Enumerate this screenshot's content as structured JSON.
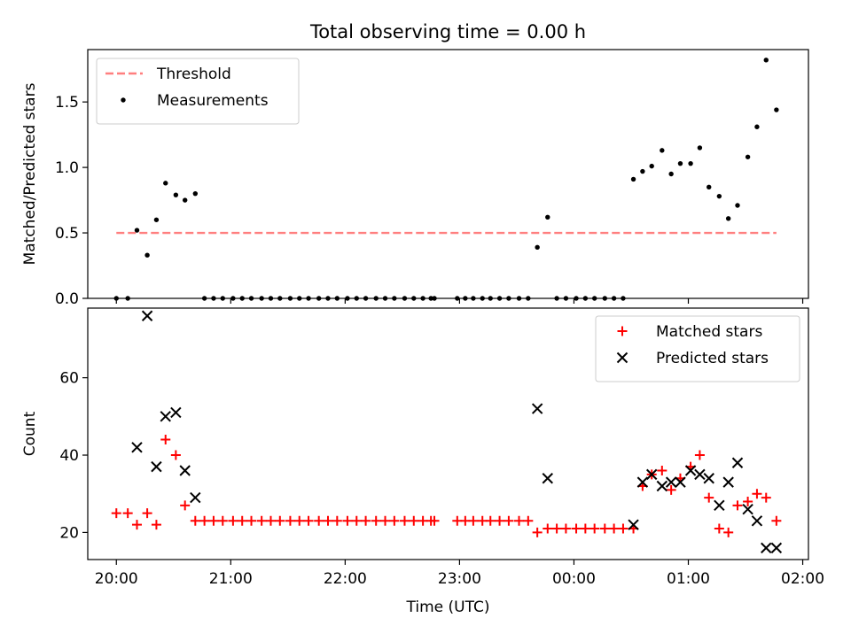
{
  "chart_data": [
    {
      "type": "scatter",
      "title": "Total observing time = 0.00 h",
      "xlabel": "",
      "ylabel": "Matched/Predicted stars",
      "ylim": [
        0,
        1.9
      ],
      "yticks": [
        0.0,
        0.5,
        1.0,
        1.5
      ],
      "ytick_labels": [
        "0.0",
        "0.5",
        "1.0",
        "1.5"
      ],
      "xlim_hours": [
        19.75,
        26.05
      ],
      "xticks_hours": [
        20,
        21,
        22,
        23,
        24,
        25,
        26
      ],
      "show_xtick_labels": false,
      "grid": false,
      "legend_position": "top-left",
      "legend": [
        {
          "label": "Threshold",
          "kind": "dashed-line",
          "color": "#ff7f7f"
        },
        {
          "label": "Measurements",
          "kind": "dot",
          "color": "#000000"
        }
      ],
      "threshold": {
        "value": 0.5,
        "x_start": 20.0,
        "x_end": 25.77,
        "color": "#ff7f7f"
      },
      "series": [
        {
          "kind": "measurements",
          "color": "#000000",
          "x": [
            20.0,
            20.1,
            20.18,
            20.27,
            20.35,
            20.43,
            20.52,
            20.6,
            20.69,
            20.77,
            20.85,
            20.93,
            21.02,
            21.1,
            21.18,
            21.27,
            21.35,
            21.43,
            21.52,
            21.6,
            21.68,
            21.77,
            21.85,
            21.93,
            22.02,
            22.1,
            22.18,
            22.27,
            22.35,
            22.43,
            22.52,
            22.6,
            22.68,
            22.75,
            22.78,
            22.98,
            23.05,
            23.12,
            23.2,
            23.27,
            23.35,
            23.43,
            23.52,
            23.6,
            23.68,
            23.77,
            23.85,
            23.93,
            24.02,
            24.1,
            24.18,
            24.27,
            24.35,
            24.43,
            24.52,
            24.6,
            24.68,
            24.77,
            24.85,
            24.93,
            25.02,
            25.1,
            25.18,
            25.27,
            25.35,
            25.43,
            25.52,
            25.6,
            25.68,
            25.77
          ],
          "y": [
            0,
            0,
            0.52,
            0.33,
            0.6,
            0.88,
            0.79,
            0.75,
            0.8,
            0,
            0,
            0,
            0,
            0,
            0,
            0,
            0,
            0,
            0,
            0,
            0,
            0,
            0,
            0,
            0,
            0,
            0,
            0,
            0,
            0,
            0,
            0,
            0,
            0,
            0,
            0,
            0,
            0,
            0,
            0,
            0,
            0,
            0,
            0,
            0.39,
            0.62,
            0,
            0,
            0,
            0,
            0,
            0,
            0,
            0,
            0.91,
            0.97,
            1.01,
            1.13,
            0.95,
            1.03,
            1.03,
            1.15,
            0.85,
            0.78,
            0.61,
            0.71,
            1.08,
            1.31,
            1.82,
            1.44
          ]
        }
      ]
    },
    {
      "type": "scatter",
      "title": "",
      "xlabel": "Time (UTC)",
      "ylabel": "Count",
      "ylim": [
        13,
        78
      ],
      "yticks": [
        20,
        40,
        60
      ],
      "ytick_labels": [
        "20",
        "40",
        "60"
      ],
      "xlim_hours": [
        19.75,
        26.05
      ],
      "xticks_hours": [
        20,
        21,
        22,
        23,
        24,
        25,
        26
      ],
      "xtick_labels": [
        "20:00",
        "21:00",
        "22:00",
        "23:00",
        "00:00",
        "01:00",
        "02:00"
      ],
      "grid": false,
      "legend_position": "top-right",
      "legend": [
        {
          "label": "Matched stars",
          "kind": "plus",
          "color": "#ff0000"
        },
        {
          "label": "Predicted stars",
          "kind": "cross",
          "color": "#000000"
        }
      ],
      "series": [
        {
          "name": "Matched stars",
          "marker": "plus",
          "color": "#ff0000",
          "x": [
            20.0,
            20.1,
            20.18,
            20.27,
            20.35,
            20.43,
            20.52,
            20.6,
            20.69,
            20.77,
            20.85,
            20.93,
            21.02,
            21.1,
            21.18,
            21.27,
            21.35,
            21.43,
            21.52,
            21.6,
            21.68,
            21.77,
            21.85,
            21.93,
            22.02,
            22.1,
            22.18,
            22.27,
            22.35,
            22.43,
            22.52,
            22.6,
            22.68,
            22.75,
            22.78,
            22.98,
            23.05,
            23.12,
            23.2,
            23.27,
            23.35,
            23.43,
            23.52,
            23.6,
            23.68,
            23.77,
            23.85,
            23.93,
            24.02,
            24.1,
            24.18,
            24.27,
            24.35,
            24.43,
            24.52,
            24.6,
            24.68,
            24.77,
            24.85,
            24.93,
            25.02,
            25.1,
            25.18,
            25.27,
            25.35,
            25.43,
            25.52,
            25.6,
            25.68,
            25.77
          ],
          "y": [
            25,
            25,
            22,
            25,
            22,
            44,
            40,
            27,
            23,
            23,
            23,
            23,
            23,
            23,
            23,
            23,
            23,
            23,
            23,
            23,
            23,
            23,
            23,
            23,
            23,
            23,
            23,
            23,
            23,
            23,
            23,
            23,
            23,
            23,
            23,
            23,
            23,
            23,
            23,
            23,
            23,
            23,
            23,
            23,
            20,
            21,
            21,
            21,
            21,
            21,
            21,
            21,
            21,
            21,
            21,
            32,
            35,
            36,
            31,
            34,
            37,
            40,
            29,
            21,
            20,
            27,
            28,
            30,
            29,
            23
          ]
        },
        {
          "name": "Predicted stars",
          "marker": "cross",
          "color": "#000000",
          "x": [
            20.18,
            20.27,
            20.35,
            20.43,
            20.52,
            20.6,
            20.69,
            23.68,
            23.77,
            24.52,
            24.6,
            24.68,
            24.77,
            24.85,
            24.93,
            25.02,
            25.1,
            25.18,
            25.27,
            25.35,
            25.43,
            25.52,
            25.6,
            25.68,
            25.77
          ],
          "y": [
            42,
            76,
            37,
            50,
            51,
            36,
            29,
            52,
            34,
            22,
            33,
            35,
            32,
            33,
            33,
            36,
            35,
            34,
            27,
            33,
            38,
            26,
            23,
            16,
            16
          ]
        }
      ]
    }
  ]
}
